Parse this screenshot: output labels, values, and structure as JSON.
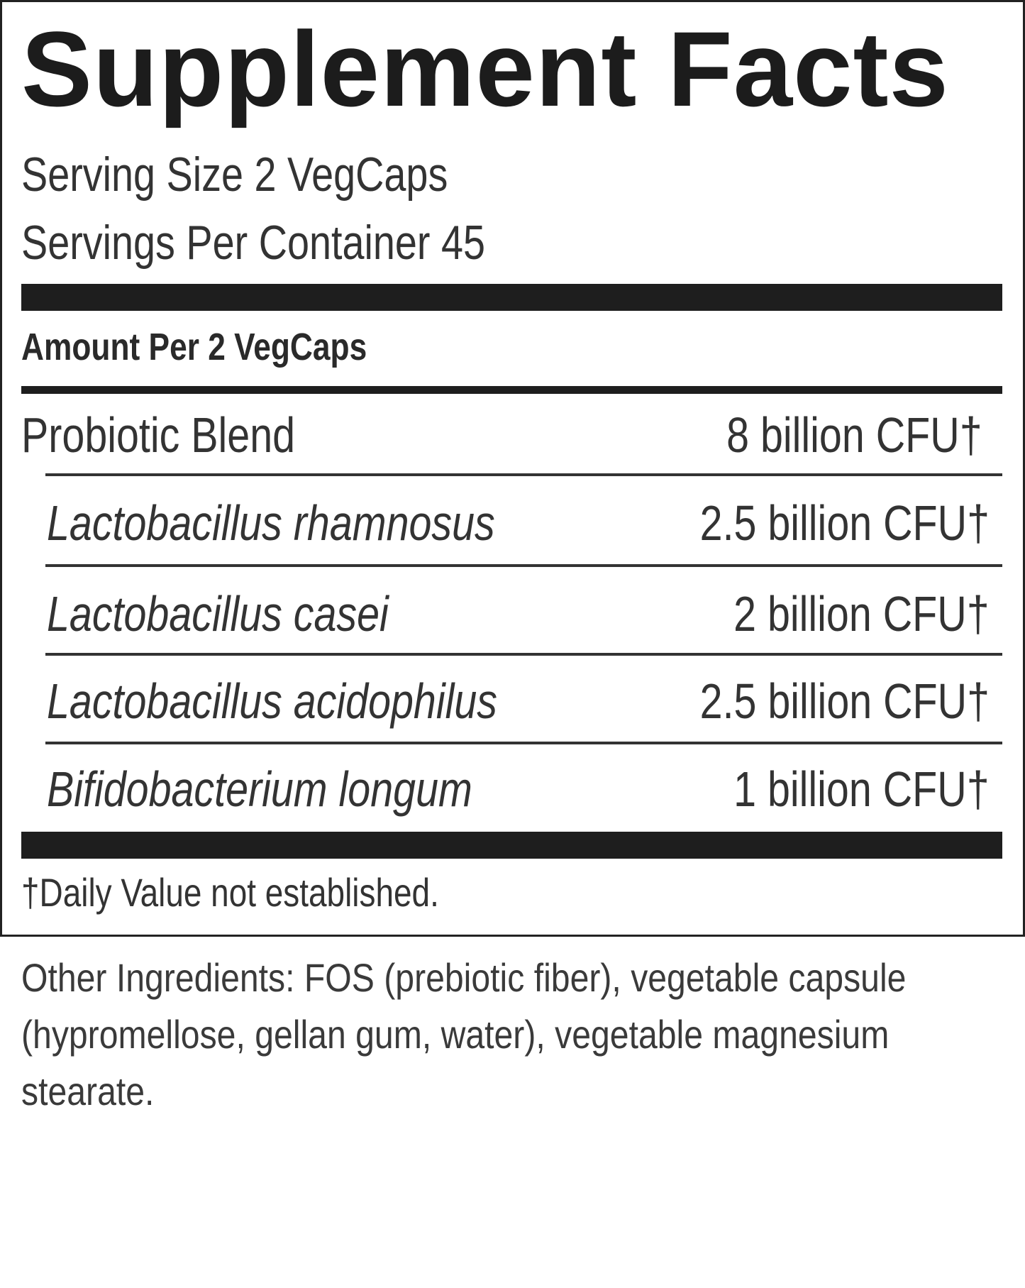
{
  "title": "Supplement Facts",
  "serving_size": "Serving Size 2 VegCaps",
  "servings_per_container": "Servings Per Container 45",
  "amount_per": "Amount Per 2 VegCaps",
  "blend": {
    "label": "Probiotic Blend",
    "value": "8 billion CFU†"
  },
  "ingredients": [
    {
      "label": "Lactobacillus rhamnosus",
      "value": "2.5 billion CFU†"
    },
    {
      "label": "Lactobacillus casei",
      "value": "2 billion CFU†"
    },
    {
      "label": "Lactobacillus acidophilus",
      "value": "2.5 billion CFU†"
    },
    {
      "label": "Bifidobacterium longum",
      "value": "1 billion CFU†"
    }
  ],
  "footnote": "†Daily Value not established.",
  "other_ingredients": "Other Ingredients: FOS (prebiotic fiber), vegetable capsule (hypromellose, gellan gum, water), vegetable magnesium stearate."
}
